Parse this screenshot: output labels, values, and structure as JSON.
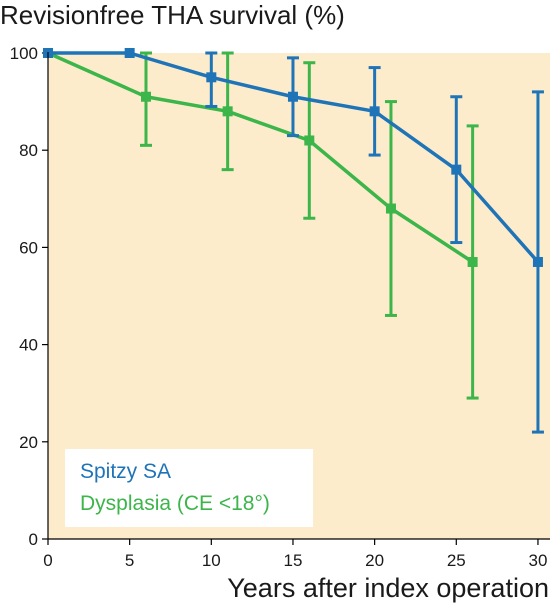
{
  "chart_data": {
    "type": "line",
    "title": "Revisionfree THA survival (%)",
    "xlabel": "Years after index operation",
    "ylabel": "",
    "xlim": [
      0,
      30
    ],
    "ylim": [
      0,
      100
    ],
    "xticks": [
      0,
      5,
      10,
      15,
      20,
      25,
      30
    ],
    "yticks": [
      0,
      20,
      40,
      60,
      80,
      100
    ],
    "xtick_labels": [
      "0",
      "5",
      "10",
      "15",
      "20",
      "25",
      "30"
    ],
    "ytick_labels": [
      "0",
      "20",
      "40",
      "60",
      "80",
      "100"
    ],
    "grid": false,
    "legend_position": "bottom-left",
    "background_color": "#fdeccb",
    "series": [
      {
        "name": "Spitzy SA",
        "color": "#1f74b8",
        "x": [
          0,
          5,
          10,
          15,
          20,
          25,
          30
        ],
        "y": [
          100,
          100,
          95,
          91,
          88,
          76,
          57
        ],
        "err_low": [
          null,
          null,
          89,
          83,
          79,
          61,
          22
        ],
        "err_high": [
          null,
          null,
          100,
          99,
          97,
          91,
          92
        ]
      },
      {
        "name": "Dysplasia (CE <18°)",
        "color": "#3cb54a",
        "x": [
          0,
          6,
          11,
          16,
          21,
          26
        ],
        "y": [
          100,
          91,
          88,
          82,
          68,
          57
        ],
        "err_low": [
          null,
          81,
          76,
          66,
          46,
          29
        ],
        "err_high": [
          null,
          100,
          100,
          98,
          90,
          85
        ]
      }
    ]
  }
}
